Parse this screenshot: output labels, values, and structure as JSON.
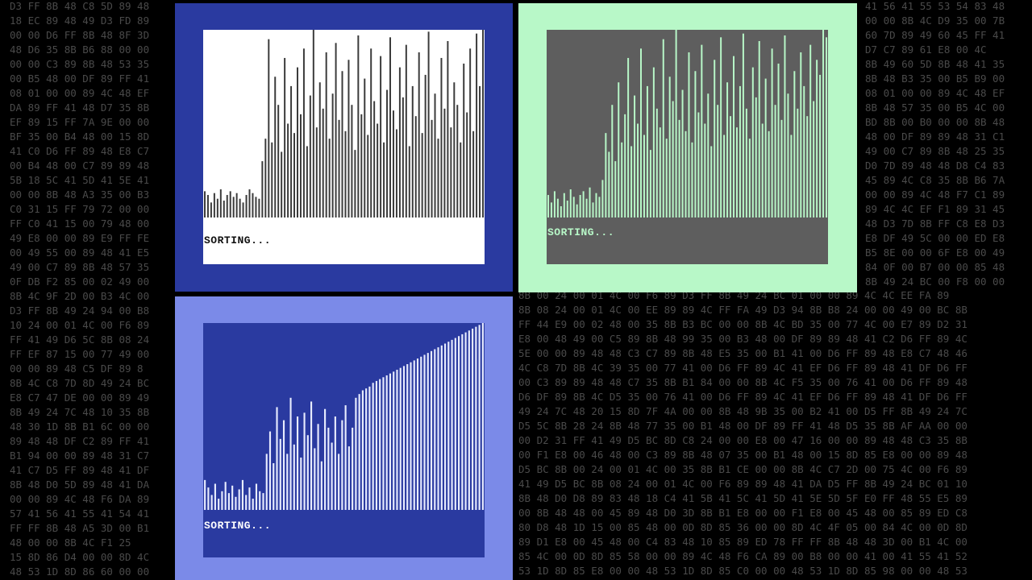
{
  "background": {
    "left": [
      "D3 FF 8B 48 C8 5D 89 48",
      "18 EC 89 48 49 D3 FD 89",
      "00 00 D6 FF 8B 48 8F 3D",
      "48 D6 35 8B B6 88 00 00",
      "00 00 C3 89 8B 48 53 35",
      "00 B5 48 00 DF 89 FF 41",
      "08 01 00 00 89 4C 48 EF",
      "DA 89 FF 41 48 D7 35 8B",
      "EF 89 15 FF 7A 9E 00 00",
      "BF 35 00 B4 48 00 15 8D",
      "41 C0 D6 FF 89 48 E8 C7",
      "00 B4 48 00 C7 89 89 48",
      "5B 18 5C 41 5D 41 5E 41",
      "00 00 8B 48 A3 35 00 B3",
      "C0 31 15 FF 79 72 00 00",
      "FF C0 41 15 00 79 48 00",
      "49 E8 00 00 89 E9 FF FE",
      "00 49 55 00 89 48 41 E5",
      "49 00 C7 89 8B 48 57 35",
      "0F DB F2 85 00 02 49 00",
      "8B 4C 9F 2D 00 B3 4C 00",
      "D3 FF 8B 49 24 94 00 B8",
      "10 24 00 01 4C 00 F6 89",
      "FF 41 49 D6 5C 8B 08 24",
      "FF EF 87 15 00 77 49 00",
      "00 00 89 48 C5 DF 89 8",
      "8B 4C C8 7D 8D 49 24 BC",
      "E8 C7 47 DE 00 00 89 49",
      "8B 49 24 7C 48 10 35 8B",
      "48 30 1D 8B B1 6C 00 00",
      "89 48 48 DF C2 89 FF 41",
      "B1 94 00 00 89 48 31 C7",
      "41 C7 D5 FF 89 48 41 DF",
      "8B 48 D0 5D 89 48 41 DA",
      "00 00 89 4C 48 F6 DA 89",
      "57 41 56 41 55 41 54 41",
      "FF FF 8B 48 A5 3D 00 B1",
      "48 00 00 8B 4C F1 25",
      "15 8D 86 D4 00 00 8D 4C",
      "48 53 1D 8D 86 60 00 00"
    ],
    "right_top": [
      "41 56 41 55 53 54 83 48",
      "00 00 8B 4C D9 35 00 7B",
      "60 7D 89 49 60 45 FF 41",
      "D7 C7 89 61 E8 00 4C",
      "8B 49 60 5D 8B 48 41 35",
      "8B 48 B3 35 00 B5 B9 00",
      "08 01 00 00 89 4C 48 EF",
      "8B 48 57 35 00 B5 4C 00",
      "BD 8B 00 B0 00 00 8B 48",
      "48 00 DF 89 89 48 31 C1",
      "49 00 C7 89 8B 48 25 35",
      "D0 7D 89 48 48 D8 C4 83",
      "45 89 4C C8 35 8B B6 7A",
      "00 00 89 4C 48 F7 C1 89",
      "89 4C 4C EF F1 89 31 45",
      "48 D3 7D 8B FF C8 E8 D3",
      "E8 DF 49 5C 00 00 ED E8",
      "B5 8E 00 00 6F E8 00 49",
      "84 0F 00 B7 00 00 85 48",
      "8B 49 24 BC 00 F8 00 00"
    ],
    "right_bottom": [
      "8B 00 24 00 01 4C 00 F6 89 D3 FF 8B 49 24 BC 01 00 00 89 4C 4C EE FA 89",
      "8B 08 24 00 01 4C 00 EE 89 89 4C FF FA 49 D3 94 8B B8 24 00 00 49 00 BC 8B",
      "FF 44 E9 00 02 48 00 35 8B B3 BC 00 00 8B 4C BD 35 00 77 4C 00 E7 89 D2 31",
      "E8 00 48 49 00 C5 89 8B 48 99 35 00 B3 48 00 DF 89 89 48 41 C2 D6 FF 89 4C",
      "5E 00 00 89 48 48 C3 C7 89 8B 48 E5 35 00 B1 41 00 D6 FF 89 48 E8 C7 48 46",
      "4C C8 7D 8B 4C 39 35 00 77 41 00 D6 FF 89 4C 41 EF D6 FF 89 48 41 DF D6 FF",
      "00 C3 89 89 48 48 C7 35 8B B1 84 00 00 8B 4C F5 35 00 76 41 00 D6 FF 89 48",
      "D6 DF 89 8B 4C D5 35 00 76 41 00 D6 FF 89 4C 41 EF D6 FF 89 48 41 DF D6 FF",
      "49 24 7C 48 20 15 8D 7F 4A 00 00 8B 48 9B 35 00 B2 41 00 D5 FF 8B 49 24 7C",
      "D5 5C 8B 28 24 8B 48 77 35 00 B1 48 00 DF 89 FF 41 48 D5 35 8B AF AA 00 00",
      "00 D2 31 FF 41 49 D5 BC 8D C8 24 00 00 E8 00 47 16 00 00 89 48 48 C3 35 8B",
      "00 F1 E8 00 46 48 00 C3 89 8B 48 07 35 00 B1 48 00 15 8D 85 E8 00 00 89 48",
      "D5 BC 8B 00 24 00 01 4C 00 35 8B B1 CE 00 00 8B 4C C7 2D 00 75 4C 00 F6 89",
      "41 49 D5 BC 8B 08 24 00 01 4C 00 F6 89 89 48 41 DA D5 FF 8B 49 24 BC 01 10",
      "8B 48 D0 D8 89 83 48 18 C4 41 5B 41 5C 41 5D 41 5E 5D 5F E0 FF 48 55 E5 89",
      "00 8B 48 48 00 45 89 48 D0 3D 8B B1 E8 00 00 F1 E8 00 45 48 00 85 89 ED C8",
      "80 D8 48 1D 15 00 85 48 00 0D 8D 85 36 00 00 8D 4C 4F 05 00 84 4C 00 0D 8D",
      "89 D1 E8 00 45 48 00 C4 83 48 10 85 89 ED 78 FF FF 8B 48 48 3D 00 B1 4C 00",
      "85 4C 00 0D 8D 85 58 00 00 89 4C 48 F6 CA 89 00 B8 00 00 41 00 41 55 41 52",
      "53 1D 8D 85 E8 00 00 48 53 1D 8D 85 C0 00 00 48 53 1D 8D 85 98 00 00 48 53"
    ]
  },
  "panels": [
    {
      "status": "SORTING...",
      "values": [
        14,
        12,
        8,
        13,
        10,
        15,
        9,
        12,
        14,
        11,
        13,
        10,
        8,
        12,
        15,
        13,
        11,
        10,
        30,
        42,
        95,
        40,
        75,
        60,
        35,
        85,
        50,
        70,
        45,
        80,
        55,
        90,
        38,
        65,
        100,
        48,
        72,
        58,
        88,
        42,
        66,
        93,
        52,
        78,
        46,
        84,
        60,
        36,
        97,
        55,
        74,
        44,
        90,
        62,
        50,
        86,
        40,
        68,
        96,
        57,
        47,
        80,
        64,
        92,
        38,
        70,
        54,
        88,
        45,
        76,
        99,
        52,
        66,
        42,
        85,
        58,
        94,
        48,
        72,
        60,
        40,
        82,
        56,
        90,
        46,
        98,
        70,
        100
      ]
    },
    {
      "status": "SORTING...",
      "values": [
        12,
        8,
        14,
        10,
        6,
        13,
        9,
        15,
        11,
        7,
        12,
        14,
        10,
        16,
        8,
        13,
        11,
        20,
        45,
        35,
        60,
        30,
        72,
        40,
        55,
        85,
        38,
        65,
        50,
        90,
        44,
        70,
        36,
        80,
        58,
        48,
        95,
        42,
        75,
        62,
        100,
        52,
        68,
        46,
        88,
        40,
        78,
        56,
        92,
        50,
        66,
        38,
        84,
        60,
        96,
        44,
        72,
        54,
        86,
        48,
        70,
        98,
        58,
        42,
        80,
        64,
        94,
        50,
        74,
        46,
        90,
        60,
        82,
        52,
        97,
        66,
        44,
        78,
        58,
        88,
        70,
        54,
        92,
        62,
        84,
        76,
        100,
        96
      ]
    },
    {
      "status": "SORTING...",
      "values": [
        16,
        12,
        8,
        14,
        6,
        10,
        15,
        9,
        13,
        7,
        11,
        16,
        8,
        12,
        6,
        14,
        10,
        9,
        30,
        42,
        25,
        55,
        38,
        48,
        30,
        60,
        35,
        50,
        28,
        52,
        40,
        58,
        33,
        46,
        26,
        54,
        44,
        36,
        50,
        30,
        48,
        56,
        34,
        44,
        60,
        62,
        64,
        65,
        66,
        68,
        69,
        70,
        71,
        72,
        73,
        74,
        75,
        76,
        77,
        78,
        79,
        80,
        81,
        82,
        83,
        84,
        85,
        86,
        87,
        88,
        89,
        90,
        91,
        92,
        93,
        94,
        95,
        96,
        97,
        98,
        99,
        100
      ]
    }
  ]
}
